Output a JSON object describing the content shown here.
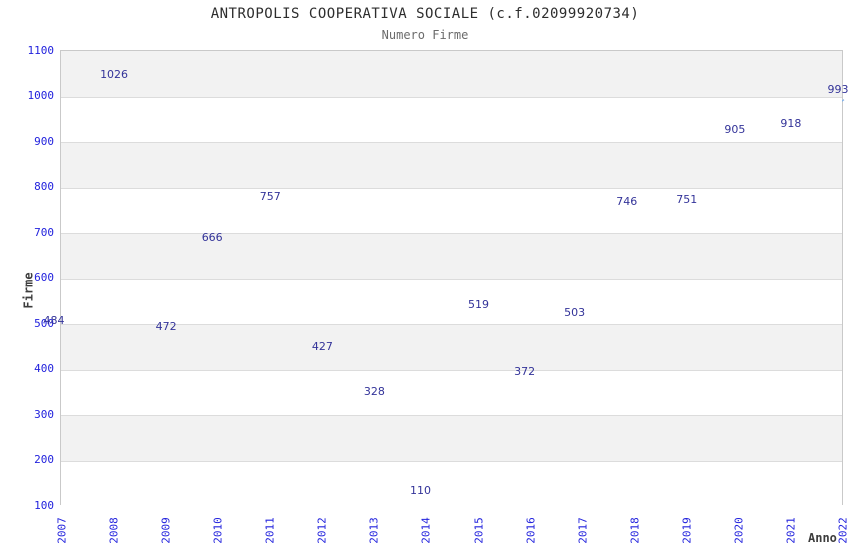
{
  "chart_data": {
    "type": "line",
    "title": "ANTROPOLIS COOPERATIVA SOCIALE (c.f.02099920734)",
    "subtitle": "Numero Firme",
    "xlabel": "Anno",
    "ylabel": "Firme",
    "categories": [
      "2007",
      "2008",
      "2009",
      "2010",
      "2011",
      "2012",
      "2013",
      "2014",
      "2015",
      "2016",
      "2017",
      "2018",
      "2019",
      "2020",
      "2021",
      "2022"
    ],
    "values": [
      484,
      1026,
      472,
      666,
      757,
      427,
      328,
      110,
      519,
      372,
      503,
      746,
      751,
      905,
      918,
      993
    ],
    "ylim": [
      100,
      1100
    ],
    "ytick_step": 100,
    "grid": "alternating-horizontal-bands",
    "legend_position": "none",
    "show_point_markers": false,
    "data_labels_shown": true,
    "label_dx": [
      -8,
      0,
      0,
      -6,
      0,
      0,
      0,
      -6,
      0,
      -6,
      -8,
      -8,
      0,
      -4,
      0,
      -5
    ],
    "colors": {
      "line": "#82b2e8",
      "data_label": "#333399",
      "tick_label": "#2222dd",
      "band_gray": "#f2f2f2",
      "band_white": "#ffffff",
      "gridline": "#dcdcdc",
      "plot_border": "#c9c9c9",
      "title": "#2d2d2d",
      "subtitle": "#6b6b6b",
      "axis_title": "#3d3d3d",
      "background": "#ffffff"
    }
  }
}
